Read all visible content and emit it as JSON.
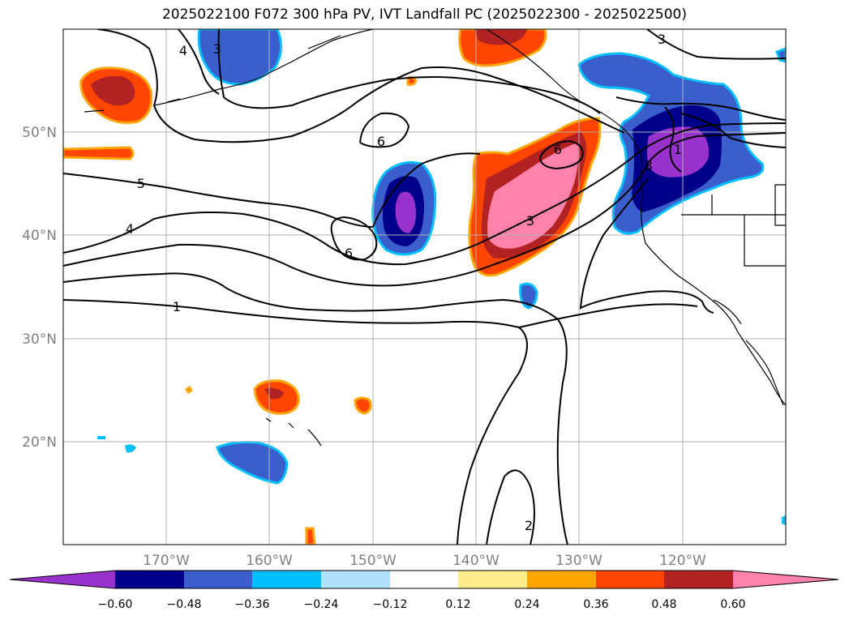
{
  "title": "2025022100 F072 300 hPa PV, IVT Landfall PC (2025022300 - 2025022500)",
  "latitude_labels": [
    "50°N",
    "40°N",
    "30°N",
    "20°N"
  ],
  "longitude_labels": [
    "170°W",
    "160°W",
    "150°W",
    "140°W",
    "130°W",
    "120°W"
  ],
  "contour_labels": [
    "1",
    "2",
    "3",
    "3",
    "4",
    "4",
    "5",
    "6",
    "6",
    "6",
    "3",
    "1",
    "3"
  ],
  "colorbar": {
    "tick_labels": [
      "−0.60",
      "−0.48",
      "−0.36",
      "−0.24",
      "−0.12",
      "0.12",
      "0.24",
      "0.36",
      "0.48",
      "0.60"
    ],
    "colors": [
      "#9932cc",
      "#00008b",
      "#3a5fcd",
      "#00bfff",
      "#b0e2ff",
      "#ffffff",
      "#ffec8b",
      "#ffa500",
      "#ff4500",
      "#b22222",
      "#ff82ab"
    ]
  },
  "colors": {
    "neg_outer": "#3a5fcd",
    "neg_mid": "#00008b",
    "neg_core": "#9932cc",
    "neg_edge": "#00bfff",
    "pos_outer": "#ff4500",
    "pos_mid": "#b22222",
    "pos_core": "#ff82ab",
    "pos_edge": "#ffa500",
    "grid": "#b0b0b0"
  }
}
